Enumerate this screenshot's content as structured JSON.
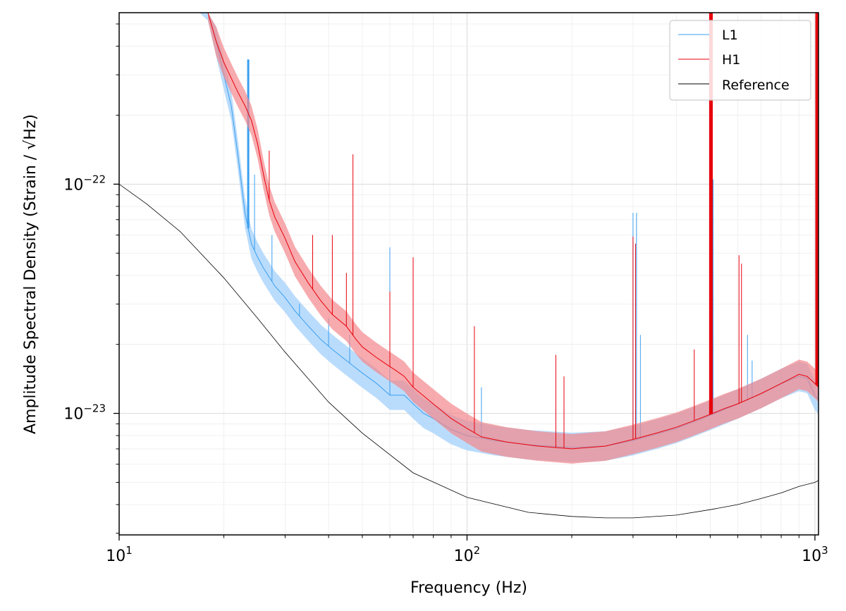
{
  "chart_data": {
    "type": "line",
    "title": "",
    "xlabel": "Frequency (Hz)",
    "ylabel": "Amplitude Spectral Density (Strain / √Hz)",
    "xscale": "log",
    "yscale": "log",
    "xlim": [
      10,
      1024
    ],
    "ylim": [
      2.95e-24,
      5.6e-22
    ],
    "grid": true,
    "legend_position": "top-right",
    "x_ticks": [
      {
        "base": "10",
        "exp": "1"
      },
      {
        "base": "10",
        "exp": "2"
      },
      {
        "base": "10",
        "exp": "3"
      }
    ],
    "y_ticks": [
      {
        "base": "10",
        "exp": "−22"
      },
      {
        "base": "10",
        "exp": "−23"
      }
    ],
    "series": [
      {
        "name": "L1",
        "color": "#3a9ff0",
        "band_color": "#a9d3fb",
        "x": [
          17,
          18,
          19,
          20,
          21,
          22,
          23,
          24,
          25,
          26,
          28,
          30,
          32,
          35,
          38,
          41,
          45,
          50,
          55,
          60,
          66,
          70,
          75,
          80,
          90,
          100,
          120,
          150,
          200,
          250,
          300,
          350,
          400,
          450,
          500,
          550,
          600,
          700,
          800,
          900,
          950,
          1000,
          1024
        ],
        "y": [
          8e-22,
          6e-22,
          4.2e-22,
          3e-22,
          2.2e-22,
          1.3e-22,
          7.5e-23,
          5.5e-23,
          4.8e-23,
          4.3e-23,
          3.6e-23,
          3.2e-23,
          2.8e-23,
          2.4e-23,
          2.1e-23,
          1.9e-23,
          1.7e-23,
          1.5e-23,
          1.35e-23,
          1.2e-23,
          1.2e-23,
          1.1e-23,
          1e-23,
          9.5e-24,
          8.5e-24,
          8e-24,
          7.6e-24,
          7.3e-24,
          7.1e-24,
          7.2e-24,
          7.6e-24,
          8.1e-24,
          8.6e-24,
          9.2e-24,
          9.8e-24,
          1.04e-23,
          1.1e-23,
          1.22e-23,
          1.35e-23,
          1.45e-23,
          1.42e-23,
          1.2e-23,
          1.15e-23
        ],
        "spikes": [
          {
            "x": 23.5,
            "y": 3.5e-22
          },
          {
            "x": 24.5,
            "y": 1.1e-22
          },
          {
            "x": 27.5,
            "y": 6e-23
          },
          {
            "x": 33,
            "y": 3e-23
          },
          {
            "x": 40,
            "y": 2.6e-23
          },
          {
            "x": 46,
            "y": 2.2e-23
          },
          {
            "x": 60,
            "y": 5.3e-23
          },
          {
            "x": 110,
            "y": 1.3e-23
          },
          {
            "x": 300,
            "y": 7.5e-23
          },
          {
            "x": 307,
            "y": 7.5e-23
          },
          {
            "x": 315,
            "y": 2.2e-23
          },
          {
            "x": 502,
            "y": 1.8e-22
          },
          {
            "x": 510,
            "y": 1.05e-22
          },
          {
            "x": 640,
            "y": 2.2e-23
          },
          {
            "x": 660,
            "y": 1.7e-23
          }
        ]
      },
      {
        "name": "H1",
        "color": "#e8000b",
        "band_color": "#f4888c",
        "x": [
          18,
          19,
          20,
          21,
          22,
          23,
          24,
          25,
          26,
          27,
          28,
          30,
          32,
          35,
          38,
          41,
          45,
          48,
          50,
          55,
          60,
          62,
          66,
          70,
          80,
          90,
          100,
          110,
          130,
          160,
          200,
          250,
          300,
          350,
          400,
          450,
          500,
          550,
          600,
          700,
          800,
          900,
          950,
          1000,
          1024
        ],
        "y": [
          6e-22,
          4.2e-22,
          3.4e-22,
          2.9e-22,
          2.5e-22,
          2.2e-22,
          1.9e-22,
          1.5e-22,
          1.1e-22,
          8.5e-23,
          7.2e-23,
          5.8e-23,
          4.6e-23,
          3.7e-23,
          3.1e-23,
          2.7e-23,
          2.4e-23,
          2.1e-23,
          1.95e-23,
          1.75e-23,
          1.6e-23,
          1.55e-23,
          1.45e-23,
          1.3e-23,
          1.1e-23,
          9.5e-24,
          8.6e-24,
          7.9e-24,
          7.5e-24,
          7.2e-24,
          7e-24,
          7.2e-24,
          7.7e-24,
          8.2e-24,
          8.7e-24,
          9.3e-24,
          9.9e-24,
          1.05e-23,
          1.1e-23,
          1.22e-23,
          1.35e-23,
          1.48e-23,
          1.45e-23,
          1.35e-23,
          1.3e-23
        ],
        "spikes": [
          {
            "x": 27,
            "y": 1.4e-22
          },
          {
            "x": 36,
            "y": 6e-23
          },
          {
            "x": 41,
            "y": 6e-23
          },
          {
            "x": 45,
            "y": 4.1e-23
          },
          {
            "x": 47,
            "y": 1.35e-22
          },
          {
            "x": 60,
            "y": 3.4e-23
          },
          {
            "x": 70,
            "y": 4.8e-23
          },
          {
            "x": 105,
            "y": 2.4e-23
          },
          {
            "x": 180,
            "y": 1.8e-23
          },
          {
            "x": 190,
            "y": 1.45e-23
          },
          {
            "x": 300,
            "y": 5.9e-23
          },
          {
            "x": 305,
            "y": 5.5e-23
          },
          {
            "x": 450,
            "y": 1.9e-23
          },
          {
            "x": 500,
            "y": 6e-22
          },
          {
            "x": 505,
            "y": 6e-22
          },
          {
            "x": 605,
            "y": 4.9e-23
          },
          {
            "x": 615,
            "y": 4.5e-23
          },
          {
            "x": 1010,
            "y": 6e-22
          },
          {
            "x": 1020,
            "y": 6e-22
          }
        ]
      },
      {
        "name": "Reference",
        "color": "#000000",
        "x": [
          10,
          12,
          15,
          20,
          25,
          30,
          40,
          50,
          70,
          100,
          150,
          200,
          250,
          300,
          400,
          500,
          600,
          700,
          800,
          900,
          1000,
          1024
        ],
        "y": [
          1e-22,
          8.2e-23,
          6.2e-23,
          3.9e-23,
          2.6e-23,
          1.85e-23,
          1.12e-23,
          8.2e-24,
          5.5e-24,
          4.3e-24,
          3.7e-24,
          3.55e-24,
          3.5e-24,
          3.5e-24,
          3.6e-24,
          3.8e-24,
          4e-24,
          4.25e-24,
          4.5e-24,
          4.8e-24,
          5e-24,
          5.1e-24
        ]
      }
    ]
  }
}
